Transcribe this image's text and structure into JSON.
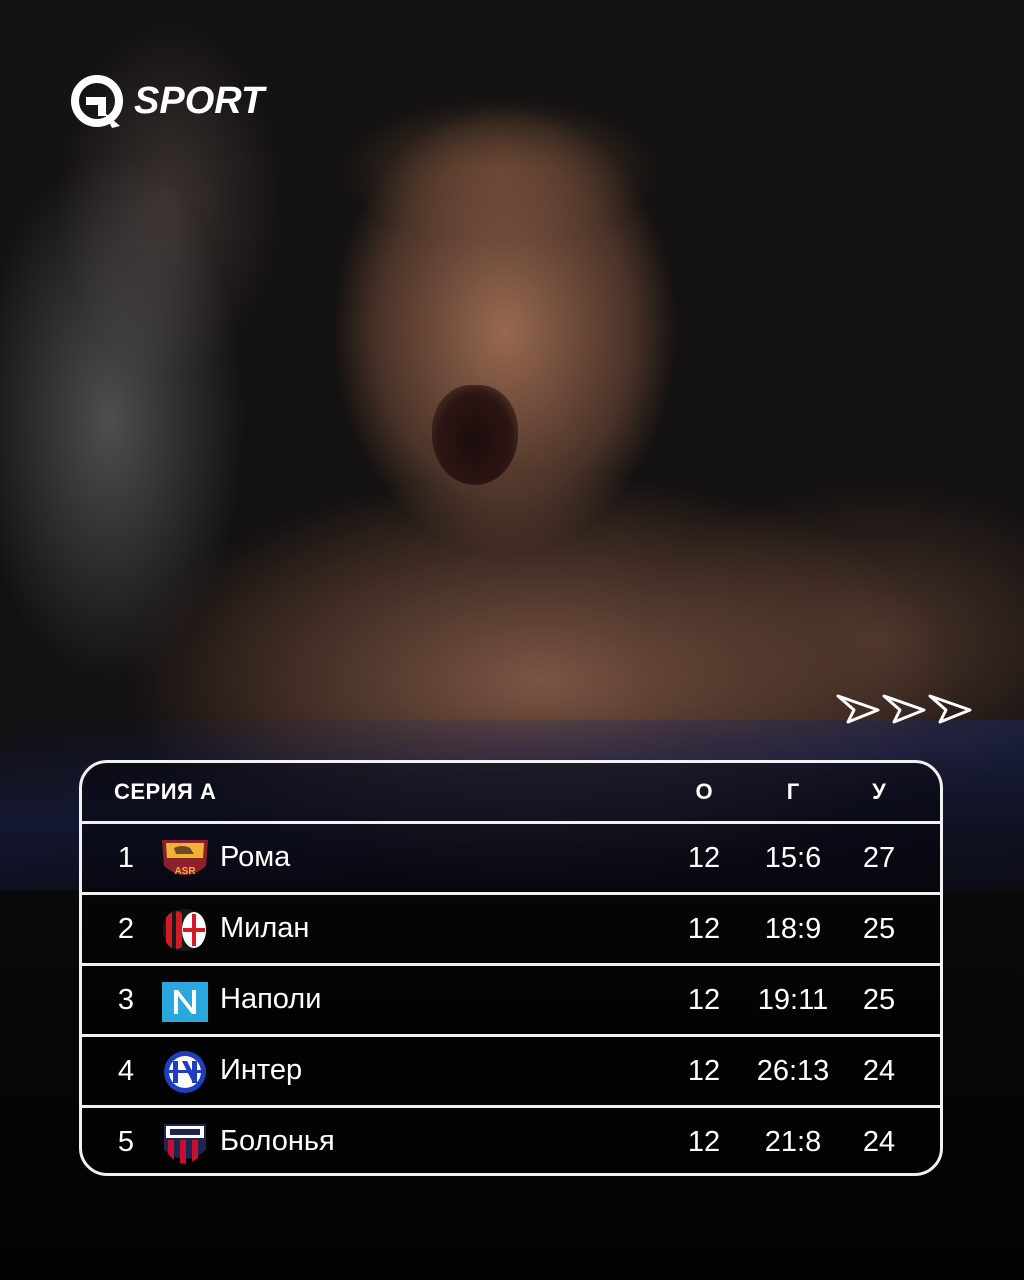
{
  "brand": {
    "name": "SPORT",
    "logo_icon": "q-circle-arrow-icon"
  },
  "decor": {
    "arrows": 3
  },
  "table": {
    "league": "СЕРИЯ А",
    "columns": {
      "played": "О",
      "goals": "Г",
      "points": "У"
    },
    "rows": [
      {
        "pos": "1",
        "team": "Рома",
        "played": "12",
        "goals": "15:6",
        "points": "27",
        "crest": "roma-crest-icon"
      },
      {
        "pos": "2",
        "team": "Милан",
        "played": "12",
        "goals": "18:9",
        "points": "25",
        "crest": "milan-crest-icon"
      },
      {
        "pos": "3",
        "team": "Наполи",
        "played": "12",
        "goals": "19:11",
        "points": "25",
        "crest": "napoli-crest-icon"
      },
      {
        "pos": "4",
        "team": "Интер",
        "played": "12",
        "goals": "26:13",
        "points": "24",
        "crest": "inter-crest-icon"
      },
      {
        "pos": "5",
        "team": "Болонья",
        "played": "12",
        "goals": "21:8",
        "points": "24",
        "crest": "bologna-crest-icon"
      }
    ]
  }
}
